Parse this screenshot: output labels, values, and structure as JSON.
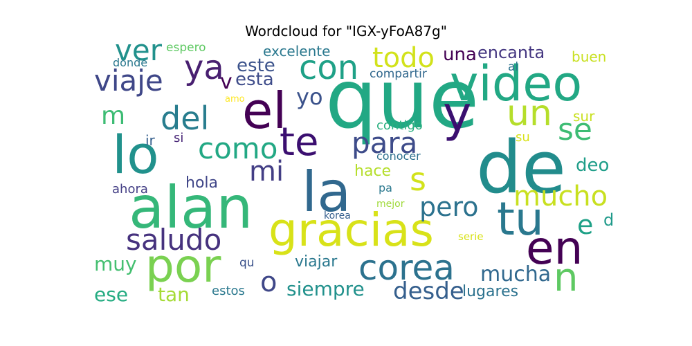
{
  "title": "Wordcloud for \"IGX-yFoA87g\"",
  "words": [
    {
      "text": "que",
      "color": "#22a884"
    },
    {
      "text": "de",
      "color": "#228c8c"
    },
    {
      "text": "alan",
      "color": "#35b779"
    },
    {
      "text": "video",
      "color": "#22a884"
    },
    {
      "text": "la",
      "color": "#31688e"
    },
    {
      "text": "lo",
      "color": "#21918c"
    },
    {
      "text": "y",
      "color": "#3b0f70"
    },
    {
      "text": "el",
      "color": "#440154"
    },
    {
      "text": "gracias",
      "color": "#d8e219"
    },
    {
      "text": "por",
      "color": "#7ad151"
    },
    {
      "text": "tu",
      "color": "#2a788e"
    },
    {
      "text": "en",
      "color": "#440154"
    },
    {
      "text": "corea",
      "color": "#2c728e"
    },
    {
      "text": "como",
      "color": "#22a884"
    },
    {
      "text": "te",
      "color": "#3b0f70"
    },
    {
      "text": "ya",
      "color": "#481f70"
    },
    {
      "text": "un",
      "color": "#b5de2b"
    },
    {
      "text": "se",
      "color": "#3dbc74"
    },
    {
      "text": "para",
      "color": "#3e4c8a"
    },
    {
      "text": "saludo",
      "color": "#46327e"
    },
    {
      "text": "mucho",
      "color": "#c8e020"
    },
    {
      "text": "con",
      "color": "#1fa187"
    },
    {
      "text": "todo",
      "color": "#d2e21b"
    },
    {
      "text": "del",
      "color": "#287d8e"
    },
    {
      "text": "viaje",
      "color": "#3f4788"
    },
    {
      "text": "ver",
      "color": "#21918c"
    },
    {
      "text": "mi",
      "color": "#433e85"
    },
    {
      "text": "s",
      "color": "#d2e21b"
    },
    {
      "text": "pero",
      "color": "#2c728e"
    },
    {
      "text": "n",
      "color": "#5ec962"
    },
    {
      "text": "o",
      "color": "#3f4788"
    },
    {
      "text": "desde",
      "color": "#355f8d"
    },
    {
      "text": "e",
      "color": "#1fa187"
    },
    {
      "text": "siempre",
      "color": "#21918c"
    },
    {
      "text": "mucha",
      "color": "#31688e"
    },
    {
      "text": "m",
      "color": "#3dbc74"
    },
    {
      "text": "d",
      "color": "#1f9a8a"
    },
    {
      "text": "yo",
      "color": "#3b528b"
    },
    {
      "text": "este",
      "color": "#3b528b"
    },
    {
      "text": "v",
      "color": "#440154"
    },
    {
      "text": "esta",
      "color": "#3e4c8a"
    },
    {
      "text": "una",
      "color": "#440154"
    },
    {
      "text": "encanta",
      "color": "#453781"
    },
    {
      "text": "excelente",
      "color": "#2a788e"
    },
    {
      "text": "espero",
      "color": "#5ec962"
    },
    {
      "text": "donde",
      "color": "#2a788e"
    },
    {
      "text": "compartir",
      "color": "#31688e"
    },
    {
      "text": "al",
      "color": "#2c728e"
    },
    {
      "text": "buen",
      "color": "#c8e020"
    },
    {
      "text": "sur",
      "color": "#c8e020"
    },
    {
      "text": "contigo",
      "color": "#29af7f"
    },
    {
      "text": "su",
      "color": "#d8e219"
    },
    {
      "text": "ir",
      "color": "#355f8d"
    },
    {
      "text": "si",
      "color": "#482677"
    },
    {
      "text": "conocer",
      "color": "#2d708e"
    },
    {
      "text": "hace",
      "color": "#b5de2b"
    },
    {
      "text": "deo",
      "color": "#1f9e89"
    },
    {
      "text": "hola",
      "color": "#404688"
    },
    {
      "text": "ahora",
      "color": "#433e85"
    },
    {
      "text": "pa",
      "color": "#2a788e"
    },
    {
      "text": "mejor",
      "color": "#9fda3a"
    },
    {
      "text": "korea",
      "color": "#355f8d"
    },
    {
      "text": "serie",
      "color": "#d8e219"
    },
    {
      "text": "muy",
      "color": "#44bf70"
    },
    {
      "text": "qu",
      "color": "#3b528b"
    },
    {
      "text": "viajar",
      "color": "#2a788e"
    },
    {
      "text": "ese",
      "color": "#25ac82"
    },
    {
      "text": "tan",
      "color": "#a5db36"
    },
    {
      "text": "estos",
      "color": "#2a788e"
    },
    {
      "text": "lugares",
      "color": "#2c728e"
    },
    {
      "text": "amo",
      "color": "#fde725"
    }
  ]
}
